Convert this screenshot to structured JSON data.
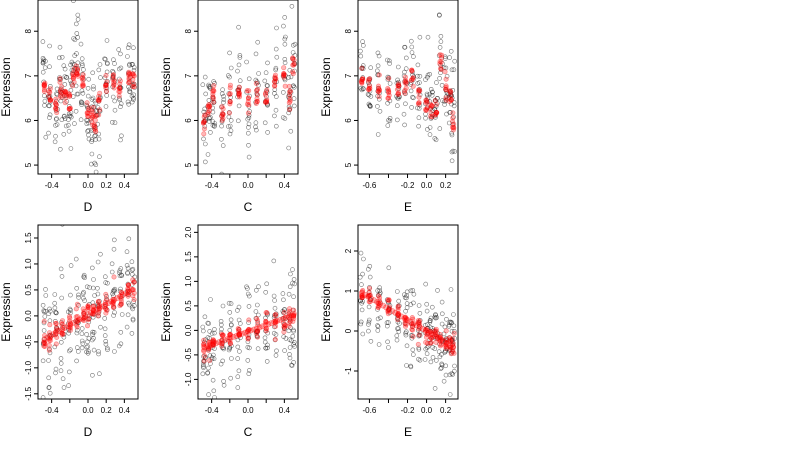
{
  "colors": {
    "observed": "#000000",
    "fitted": "#ff0000",
    "background": "#ffffff"
  },
  "chart_data": [
    {
      "type": "scatter",
      "ylabel": "Expression",
      "xlabel": "D",
      "xlim": [
        -0.55,
        0.55
      ],
      "ylim": [
        4.8,
        8.7
      ],
      "xticks": [
        -0.4,
        -0.2,
        0.0,
        0.2,
        0.4
      ],
      "xtick_labels": [
        "-0.4",
        "",
        "0.0",
        "0.2",
        "0.4"
      ],
      "yticks": [
        5,
        6,
        7,
        8
      ],
      "ytick_labels": [
        "5",
        "6",
        "7",
        "8"
      ],
      "groups": [
        {
          "x": -0.48,
          "fit": 6.8,
          "sd": 0.55
        },
        {
          "x": -0.42,
          "fit": 6.5,
          "sd": 0.5
        },
        {
          "x": -0.35,
          "fit": 6.3,
          "sd": 0.5
        },
        {
          "x": -0.3,
          "fit": 6.7,
          "sd": 0.5
        },
        {
          "x": -0.25,
          "fit": 6.6,
          "sd": 0.5
        },
        {
          "x": -0.2,
          "fit": 6.4,
          "sd": 0.6
        },
        {
          "x": -0.16,
          "fit": 7.0,
          "sd": 0.6
        },
        {
          "x": -0.12,
          "fit": 7.1,
          "sd": 0.55
        },
        {
          "x": -0.06,
          "fit": 6.9,
          "sd": 0.5
        },
        {
          "x": 0.0,
          "fit": 6.2,
          "sd": 0.5
        },
        {
          "x": 0.05,
          "fit": 6.1,
          "sd": 0.45
        },
        {
          "x": 0.08,
          "fit": 5.9,
          "sd": 0.4
        },
        {
          "x": 0.12,
          "fit": 6.4,
          "sd": 0.45
        },
        {
          "x": 0.2,
          "fit": 6.8,
          "sd": 0.5
        },
        {
          "x": 0.28,
          "fit": 6.9,
          "sd": 0.45
        },
        {
          "x": 0.35,
          "fit": 6.8,
          "sd": 0.45
        },
        {
          "x": 0.45,
          "fit": 7.0,
          "sd": 0.4
        },
        {
          "x": 0.5,
          "fit": 6.9,
          "sd": 0.4
        }
      ]
    },
    {
      "type": "scatter",
      "ylabel": "Expression",
      "xlabel": "C",
      "xlim": [
        -0.55,
        0.55
      ],
      "ylim": [
        4.8,
        8.7
      ],
      "xticks": [
        -0.4,
        -0.2,
        0.0,
        0.2,
        0.4
      ],
      "xtick_labels": [
        "-0.4",
        "",
        "0.0",
        "",
        "0.4"
      ],
      "yticks": [
        5,
        6,
        7,
        8
      ],
      "ytick_labels": [
        "5",
        "6",
        "7",
        "8"
      ],
      "groups": [
        {
          "x": -0.48,
          "fit": 5.9,
          "sd": 0.55
        },
        {
          "x": -0.43,
          "fit": 6.3,
          "sd": 0.5
        },
        {
          "x": -0.38,
          "fit": 6.6,
          "sd": 0.5
        },
        {
          "x": -0.28,
          "fit": 6.1,
          "sd": 0.5
        },
        {
          "x": -0.2,
          "fit": 6.5,
          "sd": 0.5
        },
        {
          "x": -0.1,
          "fit": 6.7,
          "sd": 0.55
        },
        {
          "x": 0.0,
          "fit": 6.5,
          "sd": 0.7
        },
        {
          "x": 0.1,
          "fit": 6.6,
          "sd": 0.55
        },
        {
          "x": 0.2,
          "fit": 6.5,
          "sd": 0.55
        },
        {
          "x": 0.3,
          "fit": 6.9,
          "sd": 0.5
        },
        {
          "x": 0.4,
          "fit": 7.0,
          "sd": 0.55
        },
        {
          "x": 0.46,
          "fit": 6.6,
          "sd": 0.6
        },
        {
          "x": 0.5,
          "fit": 7.3,
          "sd": 0.6
        }
      ]
    },
    {
      "type": "scatter",
      "ylabel": "Expression",
      "xlabel": "E",
      "xlim": [
        -0.72,
        0.33
      ],
      "ylim": [
        4.8,
        8.7
      ],
      "xticks": [
        -0.6,
        -0.4,
        -0.2,
        0.0,
        0.2
      ],
      "xtick_labels": [
        "-0.6",
        "",
        "-0.2",
        "0.0",
        "0.2"
      ],
      "yticks": [
        5,
        6,
        7,
        8
      ],
      "ytick_labels": [
        "5",
        "6",
        "7",
        "8"
      ],
      "groups": [
        {
          "x": -0.68,
          "fit": 6.9,
          "sd": 0.4
        },
        {
          "x": -0.6,
          "fit": 6.8,
          "sd": 0.45
        },
        {
          "x": -0.5,
          "fit": 6.7,
          "sd": 0.45
        },
        {
          "x": -0.4,
          "fit": 6.6,
          "sd": 0.5
        },
        {
          "x": -0.3,
          "fit": 6.7,
          "sd": 0.5
        },
        {
          "x": -0.22,
          "fit": 6.8,
          "sd": 0.5
        },
        {
          "x": -0.15,
          "fit": 7.0,
          "sd": 0.45
        },
        {
          "x": -0.08,
          "fit": 6.6,
          "sd": 0.5
        },
        {
          "x": 0.0,
          "fit": 6.4,
          "sd": 0.45
        },
        {
          "x": 0.05,
          "fit": 6.3,
          "sd": 0.45
        },
        {
          "x": 0.1,
          "fit": 6.2,
          "sd": 0.5
        },
        {
          "x": 0.15,
          "fit": 7.3,
          "sd": 0.6
        },
        {
          "x": 0.2,
          "fit": 6.8,
          "sd": 0.6
        },
        {
          "x": 0.25,
          "fit": 6.5,
          "sd": 0.55
        },
        {
          "x": 0.28,
          "fit": 5.9,
          "sd": 0.5
        }
      ]
    },
    {
      "type": "scatter",
      "ylabel": "Expression",
      "xlabel": "D",
      "xlim": [
        -0.55,
        0.55
      ],
      "ylim": [
        -1.6,
        1.75
      ],
      "xticks": [
        -0.4,
        -0.2,
        0.0,
        0.2,
        0.4
      ],
      "xtick_labels": [
        "-0.4",
        "",
        "0.0",
        "0.2",
        "0.4"
      ],
      "yticks": [
        -1.5,
        -1.0,
        -0.5,
        0.0,
        0.5,
        1.0,
        1.5
      ],
      "ytick_labels": [
        "-1.5",
        "-1.0",
        "-0.5",
        "0.0",
        "0.5",
        "1.0",
        "1.5"
      ],
      "trend": {
        "x0": -0.48,
        "x1": 0.48,
        "y0": -0.45,
        "y1": 0.5,
        "steps": 30
      },
      "groups": [
        {
          "x": -0.48,
          "fit": -0.45,
          "sd": 0.6
        },
        {
          "x": -0.42,
          "fit": -0.4,
          "sd": 0.55
        },
        {
          "x": -0.35,
          "fit": -0.3,
          "sd": 0.55
        },
        {
          "x": -0.28,
          "fit": -0.25,
          "sd": 0.6
        },
        {
          "x": -0.2,
          "fit": -0.15,
          "sd": 0.6
        },
        {
          "x": -0.12,
          "fit": -0.05,
          "sd": 0.55
        },
        {
          "x": -0.05,
          "fit": 0.0,
          "sd": 0.55
        },
        {
          "x": 0.0,
          "fit": 0.05,
          "sd": 0.55
        },
        {
          "x": 0.06,
          "fit": 0.1,
          "sd": 0.55
        },
        {
          "x": 0.12,
          "fit": 0.15,
          "sd": 0.5
        },
        {
          "x": 0.2,
          "fit": 0.2,
          "sd": 0.55
        },
        {
          "x": 0.28,
          "fit": 0.3,
          "sd": 0.5
        },
        {
          "x": 0.36,
          "fit": 0.35,
          "sd": 0.5
        },
        {
          "x": 0.44,
          "fit": 0.45,
          "sd": 0.45
        },
        {
          "x": 0.5,
          "fit": 0.5,
          "sd": 0.45
        }
      ]
    },
    {
      "type": "scatter",
      "ylabel": "Expression",
      "xlabel": "C",
      "xlim": [
        -0.55,
        0.55
      ],
      "ylim": [
        -1.4,
        2.15
      ],
      "xticks": [
        -0.4,
        -0.2,
        0.0,
        0.2,
        0.4
      ],
      "xtick_labels": [
        "-0.4",
        "",
        "0.0",
        "",
        "0.4"
      ],
      "yticks": [
        -1.0,
        -0.5,
        0.0,
        0.5,
        1.0,
        1.5,
        2.0
      ],
      "ytick_labels": [
        "-1.0",
        "-0.5",
        "0.0",
        "0.5",
        "1.0",
        "1.5",
        "2.0"
      ],
      "trend": {
        "x0": -0.48,
        "x1": 0.48,
        "y0": -0.35,
        "y1": 0.3,
        "steps": 30
      },
      "groups": [
        {
          "x": -0.48,
          "fit": -0.35,
          "sd": 0.45
        },
        {
          "x": -0.43,
          "fit": -0.3,
          "sd": 0.45
        },
        {
          "x": -0.38,
          "fit": -0.3,
          "sd": 0.4
        },
        {
          "x": -0.28,
          "fit": -0.2,
          "sd": 0.4
        },
        {
          "x": -0.2,
          "fit": -0.1,
          "sd": 0.45
        },
        {
          "x": -0.1,
          "fit": -0.05,
          "sd": 0.45
        },
        {
          "x": 0.0,
          "fit": 0.0,
          "sd": 0.6
        },
        {
          "x": 0.1,
          "fit": 0.05,
          "sd": 0.5
        },
        {
          "x": 0.2,
          "fit": 0.1,
          "sd": 0.5
        },
        {
          "x": 0.3,
          "fit": 0.15,
          "sd": 0.45
        },
        {
          "x": 0.4,
          "fit": 0.2,
          "sd": 0.45
        },
        {
          "x": 0.46,
          "fit": 0.25,
          "sd": 0.5
        },
        {
          "x": 0.5,
          "fit": 0.3,
          "sd": 0.5
        }
      ]
    },
    {
      "type": "scatter",
      "ylabel": "Expression",
      "xlabel": "E",
      "xlim": [
        -0.72,
        0.33
      ],
      "ylim": [
        -1.7,
        2.65
      ],
      "xticks": [
        -0.6,
        -0.4,
        -0.2,
        0.0,
        0.2
      ],
      "xtick_labels": [
        "-0.6",
        "",
        "-0.2",
        "0.0",
        "0.2"
      ],
      "yticks": [
        -1,
        0,
        1,
        2
      ],
      "ytick_labels": [
        "-1",
        "0",
        "1",
        "2"
      ],
      "trend": {
        "x0": -0.68,
        "x1": 0.28,
        "y0": 0.95,
        "y1": -0.4,
        "steps": 30
      },
      "groups": [
        {
          "x": -0.68,
          "fit": 0.95,
          "sd": 0.5
        },
        {
          "x": -0.6,
          "fit": 0.85,
          "sd": 0.5
        },
        {
          "x": -0.5,
          "fit": 0.7,
          "sd": 0.5
        },
        {
          "x": -0.4,
          "fit": 0.55,
          "sd": 0.5
        },
        {
          "x": -0.3,
          "fit": 0.4,
          "sd": 0.5
        },
        {
          "x": -0.22,
          "fit": 0.3,
          "sd": 0.5
        },
        {
          "x": -0.15,
          "fit": 0.2,
          "sd": 0.5
        },
        {
          "x": -0.08,
          "fit": 0.1,
          "sd": 0.5
        },
        {
          "x": 0.0,
          "fit": -0.05,
          "sd": 0.5
        },
        {
          "x": 0.05,
          "fit": -0.1,
          "sd": 0.5
        },
        {
          "x": 0.1,
          "fit": -0.15,
          "sd": 0.5
        },
        {
          "x": 0.15,
          "fit": -0.25,
          "sd": 0.5
        },
        {
          "x": 0.2,
          "fit": -0.3,
          "sd": 0.5
        },
        {
          "x": 0.25,
          "fit": -0.35,
          "sd": 0.55
        },
        {
          "x": 0.28,
          "fit": -0.4,
          "sd": 0.55
        }
      ]
    }
  ]
}
